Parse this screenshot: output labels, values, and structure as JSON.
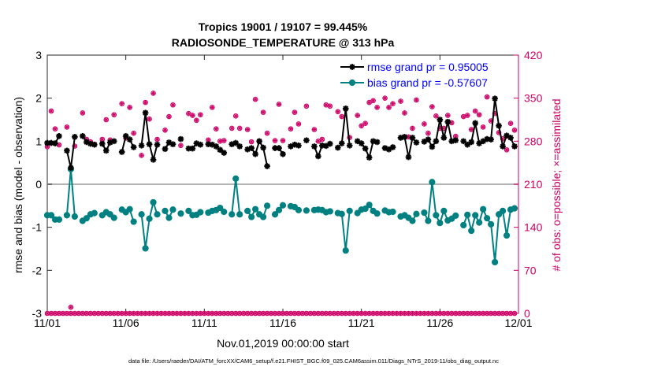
{
  "chart_data": {
    "type": "line",
    "title_line1": "Tropics 19001 / 19107 = 99.445%",
    "title_line2": "RADIOSONDE_TEMPERATURE @ 313 hPa",
    "xlabel": "Nov.01,2019 00:00:00 start",
    "ylabel_left": "rmse and bias (model - observation)",
    "ylabel_right": "# of obs: o=possible; ×=assimilated",
    "footnote": "data file: /Users/raeder/DAI/ATM_forcXX/CAM6_setup/f.e21.FHIST_BGC.f09_025.CAM6assim.011/Diags_NTrS_2019-11/obs_diag_output.nc",
    "xlim": [
      0,
      30
    ],
    "ylim_left": [
      -3,
      3
    ],
    "ylim_right": [
      0,
      420
    ],
    "xticks": [
      0,
      5,
      10,
      15,
      20,
      25,
      30
    ],
    "xtick_labels": [
      "11/01",
      "11/06",
      "11/11",
      "11/16",
      "11/21",
      "11/26",
      "12/01"
    ],
    "yticks_left": [
      -3,
      -2,
      -1,
      0,
      1,
      2,
      3
    ],
    "ytick_labels_left": [
      "-3",
      "-2",
      "-1",
      "0",
      "1",
      "2",
      "3"
    ],
    "yticks_right": [
      0,
      70,
      140,
      210,
      280,
      350,
      420
    ],
    "ytick_labels_right": [
      "0",
      "70",
      "140",
      "210",
      "280",
      "350",
      "420"
    ],
    "x": [
      0.0,
      0.25,
      0.5,
      0.75,
      1.0,
      1.25,
      1.5,
      1.75,
      2.0,
      2.25,
      2.5,
      2.75,
      3.0,
      3.25,
      3.5,
      3.75,
      4.0,
      4.25,
      4.5,
      4.75,
      5.0,
      5.25,
      5.5,
      5.75,
      6.0,
      6.25,
      6.5,
      6.75,
      7.0,
      7.25,
      7.5,
      7.75,
      8.0,
      8.25,
      8.5,
      8.75,
      9.0,
      9.25,
      9.5,
      9.75,
      10.0,
      10.25,
      10.5,
      10.75,
      11.0,
      11.25,
      11.5,
      11.75,
      12.0,
      12.25,
      12.5,
      12.75,
      13.0,
      13.25,
      13.5,
      13.75,
      14.0,
      14.25,
      14.5,
      14.75,
      15.0,
      15.25,
      15.5,
      15.75,
      16.0,
      16.25,
      16.5,
      16.75,
      17.0,
      17.25,
      17.5,
      17.75,
      18.0,
      18.25,
      18.5,
      18.75,
      19.0,
      19.25,
      19.5,
      19.75,
      20.0,
      20.25,
      20.5,
      20.75,
      21.0,
      21.25,
      21.5,
      21.75,
      22.0,
      22.25,
      22.5,
      22.75,
      23.0,
      23.25,
      23.5,
      23.75,
      24.0,
      24.25,
      24.5,
      24.75,
      25.0,
      25.25,
      25.5,
      25.75,
      26.0,
      26.25,
      26.5,
      26.75,
      27.0,
      27.25,
      27.5,
      27.75,
      28.0,
      28.25,
      28.5,
      28.75,
      29.0,
      29.25,
      29.5,
      29.75
    ],
    "series": [
      {
        "name": "rmse grand pr = 0.95005",
        "axis": "left",
        "color": "#000000",
        "marker": "asterisk",
        "values": [
          0.96,
          0.96,
          0.95,
          1.12,
          null,
          0.78,
          0.38,
          1.1,
          null,
          1.12,
          0.98,
          0.94,
          0.92,
          null,
          0.94,
          0.78,
          0.97,
          1.0,
          null,
          0.75,
          1.12,
          1.04,
          0.86,
          null,
          0.9,
          1.66,
          0.93,
          0.57,
          0.92,
          null,
          0.82,
          0.97,
          0.93,
          null,
          1.05,
          null,
          0.83,
          0.83,
          0.95,
          0.92,
          null,
          0.93,
          0.92,
          0.88,
          0.8,
          0.73,
          null,
          0.93,
          0.96,
          0.88,
          null,
          0.81,
          0.84,
          0.7,
          1.0,
          0.85,
          0.42,
          null,
          0.84,
          0.84,
          0.7,
          null,
          0.88,
          0.92,
          0.9,
          null,
          1.02,
          null,
          0.88,
          0.65,
          0.9,
          0.89,
          0.94,
          null,
          0.85,
          0.95,
          1.76,
          0.9,
          null,
          1.0,
          0.95,
          0.83,
          0.62,
          1.0,
          0.98,
          null,
          0.84,
          0.81,
          0.86,
          null,
          1.08,
          1.1,
          0.63,
          1.08,
          0.97,
          null,
          0.99,
          1.04,
          0.87,
          1.0,
          1.5,
          1.08,
          1.45,
          1.0,
          1.02,
          null,
          1.0,
          0.92,
          0.98,
          1.42,
          0.95,
          1.0,
          1.05,
          1.04,
          1.99,
          1.36,
          0.88,
          1.13,
          1.08,
          0.88
        ]
      },
      {
        "name": "bias grand pr = -0.57607",
        "axis": "left",
        "color": "#008080",
        "marker": "circle",
        "values": [
          -0.72,
          -0.72,
          -0.82,
          -0.82,
          null,
          -0.72,
          0.35,
          -0.75,
          null,
          -0.85,
          -0.79,
          -0.7,
          -0.67,
          null,
          -0.72,
          -0.65,
          -0.7,
          -0.78,
          null,
          -0.59,
          -0.65,
          -0.58,
          -0.87,
          null,
          -0.7,
          -1.49,
          -0.8,
          -0.42,
          -0.7,
          null,
          -0.62,
          -0.78,
          -0.59,
          null,
          -0.68,
          null,
          -0.62,
          -0.72,
          -0.71,
          -0.65,
          null,
          -0.66,
          -0.62,
          -0.6,
          -0.55,
          -0.64,
          null,
          -0.7,
          0.13,
          -0.7,
          null,
          -0.62,
          -0.76,
          -0.58,
          -0.7,
          -0.76,
          -0.5,
          null,
          -0.7,
          -0.6,
          -0.49,
          null,
          -0.51,
          -0.53,
          -0.6,
          null,
          -0.61,
          null,
          -0.6,
          -0.59,
          -0.6,
          -0.65,
          -0.63,
          null,
          -0.67,
          -0.69,
          -1.54,
          -0.62,
          null,
          -0.67,
          -0.59,
          -0.57,
          -0.48,
          -0.62,
          -0.68,
          null,
          -0.61,
          -0.65,
          -0.64,
          null,
          -0.75,
          -0.72,
          -0.78,
          -0.85,
          -0.69,
          null,
          -0.66,
          -0.85,
          0.05,
          -0.72,
          -0.9,
          -0.62,
          -0.84,
          -0.8,
          -0.73,
          null,
          -0.95,
          -0.71,
          -1.08,
          -0.72,
          -0.89,
          -0.58,
          -0.79,
          -0.93,
          -1.81,
          -0.7,
          -0.62,
          -1.19,
          -0.59,
          -0.56
        ]
      },
      {
        "name": "# of obs possible",
        "axis": "right",
        "color": "#cc0066",
        "marker": "o",
        "values": [
          271,
          329,
          300,
          274,
          null,
          303,
          10,
          272,
          null,
          326,
          283,
          279,
          275,
          null,
          283,
          315,
          282,
          323,
          null,
          341,
          285,
          335,
          293,
          null,
          257,
          343,
          316,
          358,
          283,
          null,
          298,
          320,
          339,
          null,
          273,
          null,
          325,
          322,
          314,
          323,
          null,
          282,
          335,
          300,
          280,
          281,
          null,
          301,
          321,
          301,
          null,
          299,
          279,
          348,
          280,
          327,
          293,
          null,
          281,
          340,
          281,
          null,
          300,
          327,
          308,
          null,
          337,
          null,
          299,
          280,
          283,
          339,
          337,
          null,
          328,
          320,
          332,
          286,
          null,
          322,
          305,
          309,
          343,
          346,
          335,
          null,
          350,
          335,
          341,
          null,
          345,
          326,
          287,
          301,
          347,
          null,
          308,
          293,
          336,
          321,
          301,
          301,
          322,
          310,
          288,
          null,
          320,
          322,
          299,
          329,
          323,
          303,
          352,
          313,
          325,
          294,
          284,
          266,
          309,
          298
        ]
      },
      {
        "name": "# of obs assimilated",
        "axis": "right",
        "color": "#cc0066",
        "marker": "x",
        "values": [
          271,
          329,
          300,
          274,
          null,
          303,
          10,
          272,
          null,
          326,
          283,
          279,
          275,
          null,
          283,
          315,
          282,
          323,
          null,
          341,
          285,
          335,
          293,
          null,
          257,
          343,
          316,
          358,
          283,
          null,
          298,
          320,
          339,
          null,
          273,
          null,
          325,
          322,
          314,
          323,
          null,
          282,
          335,
          300,
          280,
          281,
          null,
          301,
          321,
          301,
          null,
          299,
          279,
          348,
          280,
          327,
          293,
          null,
          281,
          340,
          281,
          null,
          300,
          327,
          308,
          null,
          337,
          null,
          299,
          280,
          283,
          339,
          337,
          null,
          328,
          320,
          332,
          286,
          null,
          322,
          305,
          309,
          343,
          346,
          335,
          null,
          350,
          335,
          341,
          null,
          345,
          326,
          287,
          301,
          347,
          null,
          308,
          293,
          336,
          321,
          301,
          301,
          322,
          310,
          288,
          null,
          320,
          322,
          299,
          329,
          323,
          303,
          352,
          313,
          325,
          294,
          284,
          266,
          309,
          298
        ]
      }
    ],
    "legend": [
      "rmse grand pr = 0.95005",
      "bias grand pr = -0.57607"
    ],
    "legend_position": "top-right",
    "colors": {
      "rmse": "#000000",
      "bias": "#008080",
      "obs": "#cc0066",
      "zero_line": "#b3b3b3",
      "legend_text": "#0000ff"
    }
  }
}
